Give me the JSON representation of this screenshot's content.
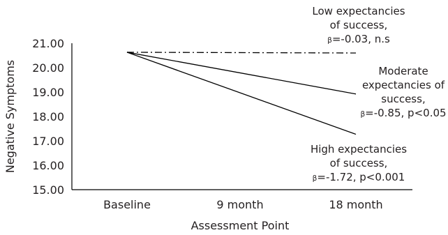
{
  "chart_data": {
    "type": "line",
    "xlabel": "Assessment Point",
    "ylabel": "Negative Symptoms",
    "categories": [
      "Baseline",
      "9 month",
      "18 month"
    ],
    "ylim": [
      15.0,
      21.0
    ],
    "yticks": [
      "15.00",
      "16.00",
      "17.00",
      "18.00",
      "19.00",
      "20.00",
      "21.00"
    ],
    "grid": false,
    "series": [
      {
        "x": [
          "Baseline",
          "18 month"
        ],
        "values": [
          20.63,
          20.6
        ],
        "line_style": "dash-dot",
        "annotation": [
          "Low expectancies",
          "of success,"
        ],
        "beta_symbol": "β",
        "beta_text": "=-0.03, n.s"
      },
      {
        "x": [
          "Baseline",
          "18 month"
        ],
        "values": [
          20.63,
          18.92
        ],
        "line_style": "solid",
        "annotation": [
          "Moderate",
          "expectancies of",
          "success,"
        ],
        "beta_symbol": "β",
        "beta_text": "=-0.85, p<0.05"
      },
      {
        "x": [
          "Baseline",
          "18 month"
        ],
        "values": [
          20.63,
          17.27
        ],
        "line_style": "solid",
        "annotation": [
          "High expectancies",
          "of success,"
        ],
        "beta_symbol": "β",
        "beta_text": "=-1.72, p<0.001"
      }
    ],
    "colors": {
      "line": "#000000",
      "text": "#231f20",
      "axis": "#000000"
    }
  }
}
